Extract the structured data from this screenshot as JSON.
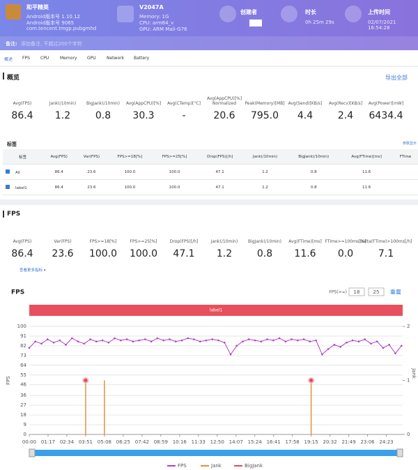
{
  "header": {
    "app_name": "和平精英",
    "app_info": [
      "Android版本号 1.10.12",
      "Android版本号 9065",
      "com.tencent.tmgp.pubgmhd"
    ],
    "device": "V2047A",
    "device_info": [
      "Memory: 1G",
      "CPU: arm64_v",
      "GPU: ARM Mali-G76"
    ],
    "creator_label": "创建者",
    "duration_label": "时长",
    "duration": "0h 25m 29s",
    "upload_label": "上传时间",
    "upload_time": "02/07/2021 16:54:28",
    "note_label": "备注:",
    "note_placeholder": "添加备注, 不超过200个字符"
  },
  "tabs": [
    "概述",
    "FPS",
    "CPU",
    "Memory",
    "GPU",
    "Network",
    "Battery"
  ],
  "overview": {
    "title": "概览",
    "export": "导出全部",
    "stats": [
      {
        "label": "Avg(FPS)",
        "value": "86.4"
      },
      {
        "label": "Jank(/10min)",
        "value": "1.2"
      },
      {
        "label": "BigJank(/10min)",
        "value": "0.8"
      },
      {
        "label": "Avg(AppCPU)[%]",
        "value": "30.3"
      },
      {
        "label": "Avg(CTemp)[°C]",
        "value": "-"
      },
      {
        "label": "Avg(AppCPU)[%] Normalized",
        "value": "20.6"
      },
      {
        "label": "Peak(Memory)[MB]",
        "value": "795.0"
      },
      {
        "label": "Avg(Send)[KB/s]",
        "value": "4.4"
      },
      {
        "label": "Avg(Recv)[KB/s]",
        "value": "2.4"
      },
      {
        "label": "Avg(Power)[mW]",
        "value": "6434.4"
      }
    ]
  },
  "labels_table": {
    "title": "标签",
    "settings": "参数显示",
    "columns": [
      "标签",
      "Avg(FPS)",
      "Var(FPS)",
      "FPS>=18[%]",
      "FPS>=25[%]",
      "Drop(FPS)[/h]",
      "Jank(/10min)",
      "BigJank(/10min)",
      "Avg(FTime)[ms]",
      "FTime"
    ],
    "rows": [
      [
        "All",
        "86.4",
        "23.6",
        "100.0",
        "100.0",
        "47.1",
        "1.2",
        "0.8",
        "11.6"
      ],
      [
        "label1",
        "86.4",
        "23.6",
        "100.0",
        "100.0",
        "47.1",
        "1.2",
        "0.8",
        "11.6"
      ]
    ]
  },
  "fps_section": {
    "title": "FPS",
    "more": "查看更多指标",
    "stats": [
      {
        "label": "Avg(FPS)",
        "value": "86.4"
      },
      {
        "label": "Var(FPS)",
        "value": "23.6"
      },
      {
        "label": "FPS>=18[%]",
        "value": "100.0"
      },
      {
        "label": "FPS>=25[%]",
        "value": "100.0"
      },
      {
        "label": "Drop(FPS)[/h]",
        "value": "47.1"
      },
      {
        "label": "Jank(/10min)",
        "value": "1.2"
      },
      {
        "label": "BigJank(/10min)",
        "value": "0.8"
      },
      {
        "label": "Avg(FTime)[ms]",
        "value": "11.6"
      },
      {
        "label": "FTime>=100ms[%]",
        "value": "0.0"
      },
      {
        "label": "Delta(FTime)>100ms[/h]",
        "value": "7.1"
      }
    ]
  },
  "chart_data": {
    "type": "line",
    "title": "FPS",
    "threshold_label": "FPS(>=)",
    "thresholds": [
      "18",
      "25"
    ],
    "reset": "重置",
    "band_label": "label1",
    "ylabel": "FPS",
    "y2label": "Jank",
    "xlim": [
      0,
      1530
    ],
    "ylim": [
      0,
      100
    ],
    "y2lim": [
      0,
      2
    ],
    "xticks": [
      {
        "value": 0,
        "label": "00:00"
      },
      {
        "value": 77,
        "label": "01:17"
      },
      {
        "value": 154,
        "label": "02:34"
      },
      {
        "value": 231,
        "label": "03:51"
      },
      {
        "value": 308,
        "label": "05:08"
      },
      {
        "value": 385,
        "label": "06:25"
      },
      {
        "value": 462,
        "label": "07:42"
      },
      {
        "value": 539,
        "label": "08:59"
      },
      {
        "value": 616,
        "label": "10:16"
      },
      {
        "value": 693,
        "label": "11:33"
      },
      {
        "value": 770,
        "label": "12:50"
      },
      {
        "value": 847,
        "label": "14:07"
      },
      {
        "value": 924,
        "label": "15:24"
      },
      {
        "value": 1001,
        "label": "16:41"
      },
      {
        "value": 1078,
        "label": "17:58"
      },
      {
        "value": 1155,
        "label": "19:15"
      },
      {
        "value": 1232,
        "label": "20:32"
      },
      {
        "value": 1309,
        "label": "21:49"
      },
      {
        "value": 1386,
        "label": "23:06"
      },
      {
        "value": 1463,
        "label": "24:23"
      }
    ],
    "yticks": [
      0,
      9,
      18,
      27,
      36,
      46,
      55,
      64,
      73,
      82,
      91,
      100
    ],
    "y2ticks": [
      0,
      1,
      2
    ],
    "grid": true,
    "series": [
      {
        "name": "FPS",
        "color": "#b040c8",
        "x": [
          0,
          25,
          50,
          75,
          100,
          125,
          150,
          175,
          200,
          225,
          250,
          275,
          300,
          325,
          350,
          375,
          400,
          425,
          450,
          475,
          500,
          525,
          550,
          575,
          600,
          625,
          650,
          675,
          700,
          725,
          750,
          775,
          800,
          825,
          850,
          875,
          900,
          925,
          950,
          975,
          1000,
          1025,
          1050,
          1075,
          1100,
          1125,
          1150,
          1175,
          1200,
          1225,
          1250,
          1275,
          1300,
          1325,
          1350,
          1375,
          1400,
          1425,
          1450,
          1475,
          1500,
          1525
        ],
        "values": [
          80,
          86,
          84,
          88,
          85,
          87,
          83,
          89,
          86,
          84,
          88,
          86,
          87,
          85,
          89,
          87,
          88,
          86,
          87,
          88,
          86,
          89,
          87,
          88,
          86,
          87,
          89,
          88,
          86,
          87,
          88,
          87,
          85,
          74,
          82,
          86,
          88,
          87,
          86,
          88,
          87,
          89,
          86,
          88,
          87,
          88,
          86,
          87,
          74,
          79,
          83,
          81,
          85,
          87,
          86,
          88,
          84,
          86,
          80,
          83,
          75,
          82
        ]
      },
      {
        "name": "Jank",
        "color": "#e8903a",
        "axis": "y2",
        "x": [
          231,
          308,
          1155
        ],
        "values": [
          1,
          1,
          1
        ]
      },
      {
        "name": "BigJank",
        "color": "#e04a5a",
        "axis": "y2",
        "x": [
          231,
          1155
        ],
        "values": [
          1,
          1
        ]
      }
    ]
  }
}
